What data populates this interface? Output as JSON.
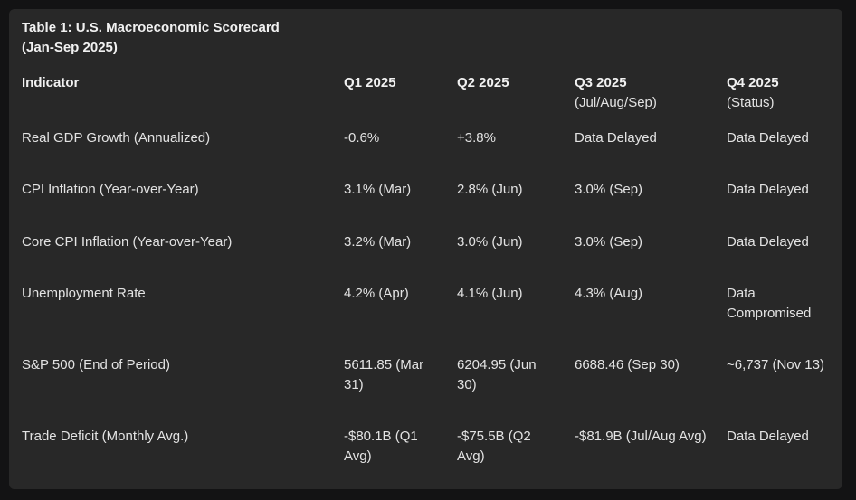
{
  "table": {
    "title_line1": "Table 1: U.S. Macroeconomic Scorecard",
    "title_line2": "(Jan-Sep 2025)",
    "headers": [
      {
        "label": "Indicator",
        "sub": ""
      },
      {
        "label": "Q1 2025",
        "sub": ""
      },
      {
        "label": "Q2 2025",
        "sub": ""
      },
      {
        "label": "Q3 2025",
        "sub": "(Jul/Aug/Sep)"
      },
      {
        "label": "Q4 2025",
        "sub": "(Status)"
      }
    ],
    "rows": [
      [
        "Real GDP Growth (Annualized)",
        "-0.6%",
        "+3.8%",
        "Data Delayed",
        "Data Delayed"
      ],
      [
        "CPI Inflation (Year-over-Year)",
        "3.1% (Mar)",
        "2.8% (Jun)",
        "3.0% (Sep)",
        "Data Delayed"
      ],
      [
        "Core CPI Inflation (Year-over-Year)",
        "3.2% (Mar)",
        "3.0% (Jun)",
        "3.0% (Sep)",
        "Data Delayed"
      ],
      [
        "Unemployment Rate",
        "4.2% (Apr)",
        "4.1% (Jun)",
        "4.3% (Aug)",
        "Data Compromised"
      ],
      [
        "S&P 500 (End of Period)",
        "5611.85 (Mar 31)",
        "6204.95 (Jun 30)",
        "6688.46 (Sep 30)",
        "~6,737 (Nov 13)"
      ],
      [
        "Trade Deficit (Monthly Avg.)",
        "-$80.1B (Q1 Avg)",
        "-$75.5B (Q2 Avg)",
        "-$81.9B (Jul/Aug Avg)",
        "Data Delayed"
      ]
    ]
  }
}
